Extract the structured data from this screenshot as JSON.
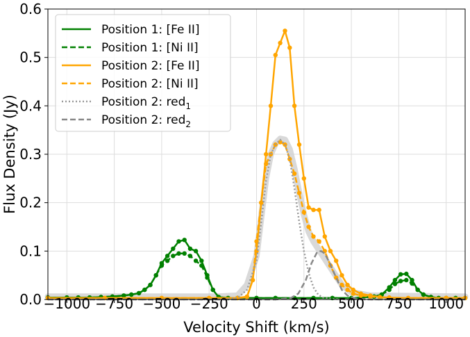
{
  "chart_data": {
    "type": "line",
    "xlabel": "Velocity Shift (km/s)",
    "ylabel": "Flux Density (Jy)",
    "xlim": [
      -1100,
      1100
    ],
    "ylim": [
      0,
      0.6
    ],
    "xticks": [
      -1000,
      -750,
      -500,
      -250,
      0,
      250,
      500,
      750,
      1000
    ],
    "xtick_labels": [
      "−1000",
      "−750",
      "−500",
      "−250",
      "0",
      "250",
      "500",
      "750",
      "1000"
    ],
    "yticks": [
      0,
      0.1,
      0.2,
      0.3,
      0.4,
      0.5,
      0.6
    ],
    "ytick_labels": [
      "0.0",
      "0.1",
      "0.2",
      "0.3",
      "0.4",
      "0.5",
      "0.6"
    ],
    "grid": true,
    "legend_position": "top-left",
    "series": [
      {
        "name": "Position 1: [Fe II]",
        "color": "#008000",
        "style": "solid",
        "markers": true,
        "x": [
          -1100,
          -1000,
          -940,
          -880,
          -820,
          -760,
          -700,
          -660,
          -620,
          -590,
          -560,
          -530,
          -500,
          -470,
          -440,
          -410,
          -380,
          -350,
          -320,
          -290,
          -260,
          -230,
          -200,
          -150,
          -100,
          0,
          100,
          200,
          300,
          400,
          500,
          560,
          620,
          660,
          700,
          730,
          760,
          790,
          820,
          850,
          880,
          920,
          960,
          1000,
          1050,
          1100
        ],
        "y": [
          0.004,
          0.004,
          0.004,
          0.004,
          0.005,
          0.006,
          0.008,
          0.01,
          0.013,
          0.02,
          0.03,
          0.05,
          0.075,
          0.09,
          0.105,
          0.12,
          0.123,
          0.105,
          0.1,
          0.08,
          0.05,
          0.02,
          0.005,
          0.003,
          0.003,
          0.003,
          0.003,
          0.003,
          0.003,
          0.003,
          0.003,
          0.004,
          0.006,
          0.01,
          0.025,
          0.04,
          0.052,
          0.053,
          0.04,
          0.02,
          0.01,
          0.005,
          0.003,
          0.003,
          0.003,
          0.003
        ]
      },
      {
        "name": "Position 1: [Ni II]",
        "color": "#008000",
        "style": "dashed",
        "markers": true,
        "x": [
          -1100,
          -1000,
          -940,
          -880,
          -820,
          -760,
          -700,
          -660,
          -620,
          -590,
          -560,
          -530,
          -500,
          -470,
          -440,
          -410,
          -380,
          -350,
          -320,
          -290,
          -260,
          -230,
          -200,
          -150,
          -100,
          0,
          100,
          200,
          300,
          400,
          500,
          560,
          620,
          660,
          700,
          730,
          760,
          790,
          820,
          850,
          880,
          920,
          960,
          1000,
          1050,
          1100
        ],
        "y": [
          0.004,
          0.004,
          0.004,
          0.004,
          0.005,
          0.006,
          0.008,
          0.01,
          0.013,
          0.02,
          0.03,
          0.05,
          0.07,
          0.08,
          0.09,
          0.095,
          0.095,
          0.09,
          0.08,
          0.07,
          0.045,
          0.02,
          0.005,
          0.003,
          0.003,
          0.003,
          0.003,
          0.003,
          0.003,
          0.003,
          0.003,
          0.004,
          0.006,
          0.01,
          0.02,
          0.032,
          0.038,
          0.04,
          0.033,
          0.02,
          0.01,
          0.005,
          0.003,
          0.003,
          0.003,
          0.003
        ]
      },
      {
        "name": "Position 2: [Fe II]",
        "color": "#FFA500",
        "style": "solid",
        "markers": true,
        "x": [
          -1100,
          -800,
          -500,
          -250,
          -100,
          -50,
          -20,
          0,
          25,
          50,
          75,
          100,
          125,
          150,
          175,
          200,
          225,
          250,
          275,
          300,
          330,
          360,
          390,
          420,
          450,
          480,
          510,
          550,
          600,
          650,
          700,
          800,
          1000,
          1100
        ],
        "y": [
          0.003,
          0.003,
          0.003,
          0.003,
          0.003,
          0.005,
          0.04,
          0.1,
          0.2,
          0.3,
          0.4,
          0.505,
          0.53,
          0.555,
          0.52,
          0.4,
          0.32,
          0.25,
          0.19,
          0.185,
          0.185,
          0.13,
          0.1,
          0.08,
          0.05,
          0.03,
          0.02,
          0.012,
          0.008,
          0.005,
          0.004,
          0.003,
          0.003,
          0.003
        ]
      },
      {
        "name": "Position 2: [Ni II]",
        "color": "#FFA500",
        "style": "dashed",
        "markers": true,
        "x": [
          -1100,
          -800,
          -500,
          -250,
          -100,
          -50,
          -20,
          0,
          25,
          50,
          75,
          100,
          125,
          150,
          175,
          200,
          225,
          250,
          275,
          300,
          330,
          360,
          390,
          420,
          450,
          480,
          510,
          550,
          600,
          650,
          700,
          800,
          1000,
          1100
        ],
        "y": [
          0.003,
          0.003,
          0.003,
          0.003,
          0.003,
          0.006,
          0.04,
          0.12,
          0.2,
          0.28,
          0.3,
          0.32,
          0.325,
          0.32,
          0.29,
          0.26,
          0.22,
          0.18,
          0.15,
          0.13,
          0.12,
          0.1,
          0.07,
          0.045,
          0.03,
          0.02,
          0.012,
          0.008,
          0.006,
          0.004,
          0.003,
          0.003,
          0.003,
          0.003
        ]
      },
      {
        "name": "Position 2: red₁",
        "legend_base": "Position 2: red",
        "legend_sub": "1",
        "color": "#999999",
        "style": "dotted",
        "markers": false,
        "x": [
          -1100,
          -200,
          -100,
          -50,
          0,
          25,
          50,
          75,
          100,
          125,
          150,
          175,
          200,
          225,
          250,
          275,
          300,
          325,
          350,
          400,
          500,
          1100
        ],
        "y": [
          0,
          0,
          0.003,
          0.02,
          0.08,
          0.16,
          0.245,
          0.3,
          0.32,
          0.33,
          0.32,
          0.29,
          0.23,
          0.16,
          0.1,
          0.055,
          0.025,
          0.01,
          0.004,
          0.001,
          0,
          0
        ]
      },
      {
        "name": "Position 2: red₂",
        "legend_base": "Position 2: red",
        "legend_sub": "2",
        "color": "#888888",
        "style": "dashed",
        "markers": false,
        "x": [
          -1100,
          100,
          180,
          220,
          260,
          290,
          320,
          340,
          360,
          390,
          420,
          450,
          480,
          520,
          600,
          1100
        ],
        "y": [
          0,
          0,
          0.003,
          0.012,
          0.04,
          0.075,
          0.098,
          0.1,
          0.095,
          0.072,
          0.045,
          0.02,
          0.008,
          0.002,
          0,
          0
        ]
      }
    ],
    "model_band": {
      "color": "#cccccc",
      "x": [
        -1100,
        -200,
        -100,
        -50,
        0,
        25,
        50,
        75,
        100,
        125,
        150,
        175,
        200,
        225,
        250,
        275,
        300,
        325,
        350,
        400,
        450,
        500,
        600,
        1100
      ],
      "y": [
        0.006,
        0.006,
        0.008,
        0.03,
        0.09,
        0.17,
        0.25,
        0.3,
        0.322,
        0.332,
        0.33,
        0.31,
        0.27,
        0.22,
        0.175,
        0.14,
        0.12,
        0.105,
        0.09,
        0.06,
        0.03,
        0.015,
        0.008,
        0.006
      ]
    }
  }
}
